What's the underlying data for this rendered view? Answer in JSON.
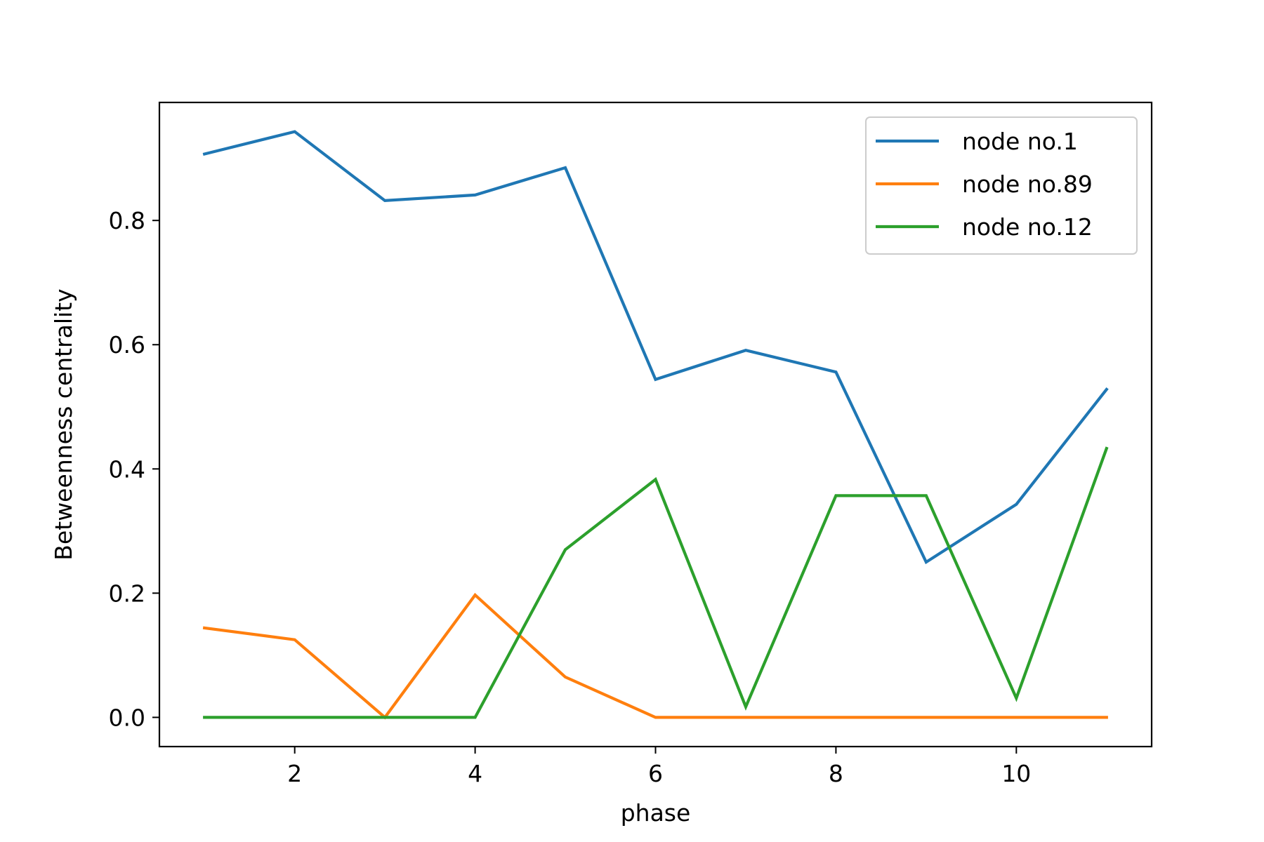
{
  "chart_data": {
    "type": "line",
    "title": "",
    "xlabel": "phase",
    "ylabel": "Betweenness centrality",
    "x": [
      1,
      2,
      3,
      4,
      5,
      6,
      7,
      8,
      9,
      10,
      11
    ],
    "xlim": [
      0.5,
      11.5
    ],
    "ylim": [
      -0.047,
      0.99
    ],
    "xticks": [
      2,
      4,
      6,
      8,
      10
    ],
    "xtick_labels": [
      "2",
      "4",
      "6",
      "8",
      "10"
    ],
    "yticks": [
      0.0,
      0.2,
      0.4,
      0.6,
      0.8
    ],
    "ytick_labels": [
      "0.0",
      "0.2",
      "0.4",
      "0.6",
      "0.8"
    ],
    "grid": false,
    "legend_position": "top-right",
    "series": [
      {
        "name": "node no.1",
        "color": "#1f77b4",
        "values": [
          0.907,
          0.943,
          0.832,
          0.841,
          0.885,
          0.544,
          0.591,
          0.556,
          0.25,
          0.343,
          0.528
        ]
      },
      {
        "name": "node no.89",
        "color": "#ff7f0e",
        "values": [
          0.144,
          0.125,
          0.0,
          0.197,
          0.065,
          0.0,
          0.0,
          0.0,
          0.0,
          0.0,
          0.0
        ]
      },
      {
        "name": "node no.12",
        "color": "#2ca02c",
        "values": [
          0.0,
          0.0,
          0.0,
          0.0,
          0.27,
          0.383,
          0.017,
          0.357,
          0.357,
          0.031,
          0.433
        ]
      }
    ]
  }
}
